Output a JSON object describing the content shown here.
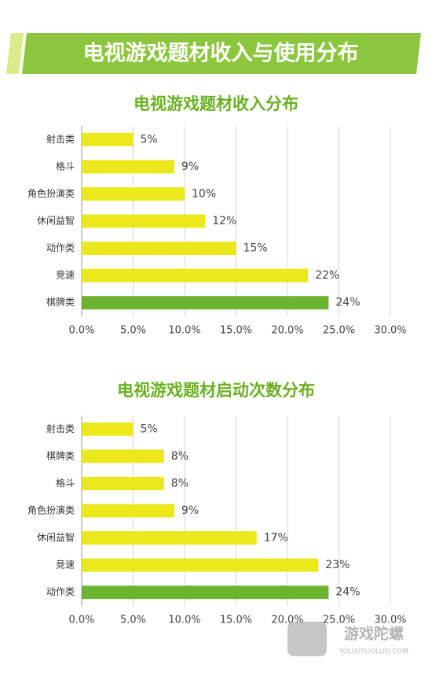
{
  "header": {
    "title": "电视游戏题材收入与使用分布"
  },
  "chart_data": [
    {
      "type": "bar",
      "orientation": "horizontal",
      "title": "电视游戏题材收入分布",
      "categories": [
        "射击类",
        "格斗",
        "角色扮演类",
        "休闲益智",
        "动作类",
        "竞速",
        "棋牌类"
      ],
      "values": [
        5,
        9,
        10,
        12,
        15,
        22,
        24
      ],
      "value_labels": [
        "5%",
        "9%",
        "10%",
        "12%",
        "15%",
        "22%",
        "24%"
      ],
      "colors": [
        "#ebe81c",
        "#ebe81c",
        "#ebe81c",
        "#ebe81c",
        "#ebe81c",
        "#ebe81c",
        "#6bb42f"
      ],
      "xlim": [
        0,
        30
      ],
      "xticks": [
        {
          "value": 0,
          "label": "0.0%"
        },
        {
          "value": 5,
          "label": "5.0%"
        },
        {
          "value": 10,
          "label": "10.0%"
        },
        {
          "value": 15,
          "label": "15.0%"
        },
        {
          "value": 20,
          "label": "20.0%"
        },
        {
          "value": 25,
          "label": "25.0%"
        },
        {
          "value": 30,
          "label": "30.0%"
        }
      ],
      "grid": true
    },
    {
      "type": "bar",
      "orientation": "horizontal",
      "title": "电视游戏题材启动次数分布",
      "categories": [
        "射击类",
        "棋牌类",
        "格斗",
        "角色扮演类",
        "休闲益智",
        "竞速",
        "动作类"
      ],
      "values": [
        5,
        8,
        8,
        9,
        17,
        23,
        24
      ],
      "value_labels": [
        "5%",
        "8%",
        "8%",
        "9%",
        "17%",
        "23%",
        "24%"
      ],
      "colors": [
        "#ebe81c",
        "#ebe81c",
        "#ebe81c",
        "#ebe81c",
        "#ebe81c",
        "#ebe81c",
        "#6bb42f"
      ],
      "xlim": [
        0,
        30
      ],
      "xticks": [
        {
          "value": 0,
          "label": "0.0%"
        },
        {
          "value": 5,
          "label": "5.0%"
        },
        {
          "value": 10,
          "label": "10.0%"
        },
        {
          "value": 15,
          "label": "15.0%"
        },
        {
          "value": 20,
          "label": "20.0%"
        },
        {
          "value": 25,
          "label": "25.0%"
        },
        {
          "value": 30,
          "label": "30.0%"
        }
      ],
      "grid": true
    }
  ],
  "watermark": {
    "name": "游戏陀螺",
    "url": "YOUXITUOLUO.COM"
  }
}
